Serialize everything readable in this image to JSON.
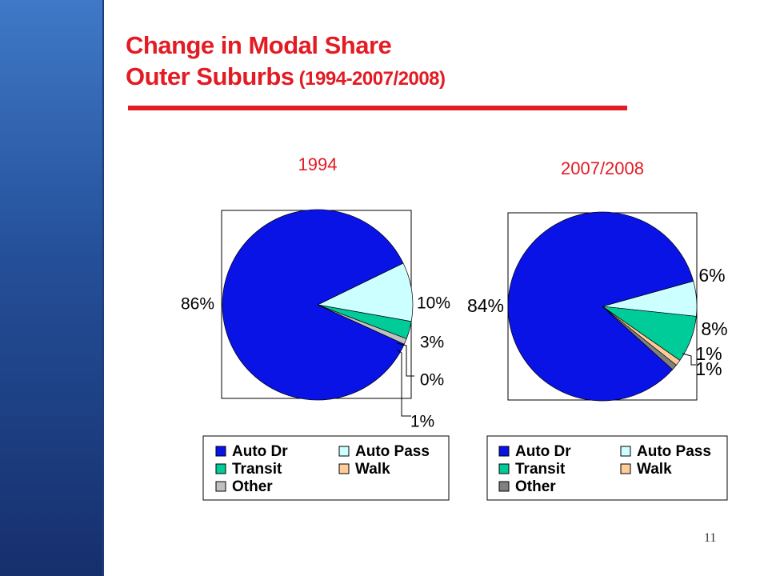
{
  "slide": {
    "title_line1": "Change in Modal Share",
    "title_line2": "Outer Suburbs",
    "title_line2_suffix": " (1994-2007/2008)",
    "page_number": "11"
  },
  "colors": {
    "title_red": "#e31b23",
    "sidebar_blue": "#244f98"
  },
  "chart_data": [
    {
      "type": "pie",
      "title": "1994",
      "slices": [
        {
          "name": "Auto Dr",
          "value": 86,
          "label": "86%",
          "color": "#0a13e6"
        },
        {
          "name": "Auto Pass",
          "value": 10,
          "label": "10%",
          "color": "#ccffff"
        },
        {
          "name": "Transit",
          "value": 3,
          "label": "3%",
          "color": "#00cc99"
        },
        {
          "name": "Walk",
          "value": 0,
          "label": "0%",
          "color": "#ffcc99"
        },
        {
          "name": "Other",
          "value": 1,
          "label": "1%",
          "color": "#c0c0c0"
        }
      ],
      "legend": [
        "Auto Dr",
        "Auto Pass",
        "Transit",
        "Walk",
        "Other"
      ],
      "legend_position": "bottom"
    },
    {
      "type": "pie",
      "title": "2007/2008",
      "slices": [
        {
          "name": "Auto Dr",
          "value": 84,
          "label": "84%",
          "color": "#0a13e6"
        },
        {
          "name": "Auto Pass",
          "value": 6,
          "label": "6%",
          "color": "#ccffff"
        },
        {
          "name": "Transit",
          "value": 8,
          "label": "8%",
          "color": "#00cc99"
        },
        {
          "name": "Walk",
          "value": 1,
          "label": "1%",
          "color": "#ffcc99"
        },
        {
          "name": "Other",
          "value": 1,
          "label": "1%",
          "color": "#808080"
        }
      ],
      "legend": [
        "Auto Dr",
        "Auto Pass",
        "Transit",
        "Walk",
        "Other"
      ],
      "legend_position": "bottom"
    }
  ]
}
